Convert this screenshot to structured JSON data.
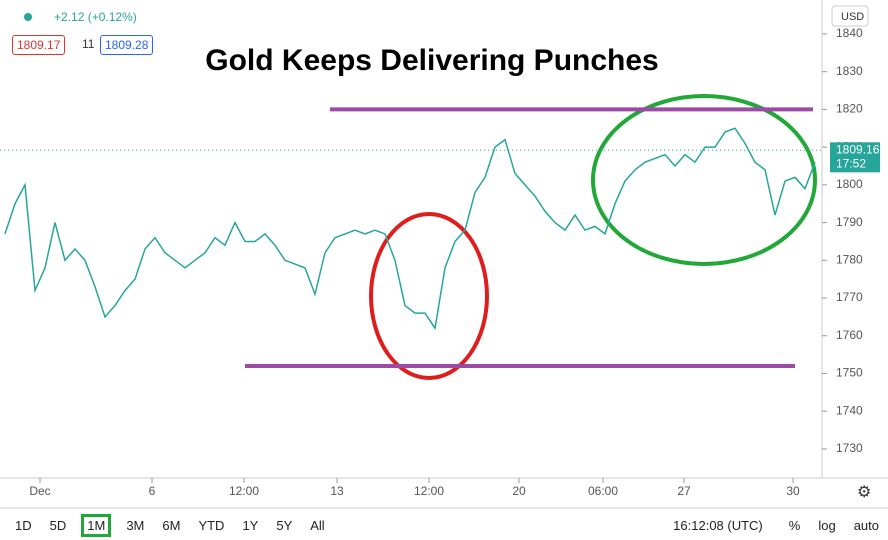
{
  "chart_data": {
    "type": "line",
    "title": "Gold Keeps Delivering Punches",
    "change": "+2.12 (+0.12%)",
    "bid": "1809.17",
    "spread": "11",
    "ask": "1809.28",
    "currency": "USD",
    "color": "#26a69a",
    "values": [
      1787,
      1795,
      1800,
      1772,
      1778,
      1790,
      1780,
      1783,
      1780,
      1773,
      1765,
      1768,
      1772,
      1775,
      1783,
      1786,
      1782,
      1780,
      1778,
      1780,
      1782,
      1786,
      1784,
      1790,
      1785,
      1785,
      1787,
      1784,
      1780,
      1779,
      1778,
      1771,
      1782,
      1786,
      1787,
      1788,
      1787,
      1788,
      1787,
      1780,
      1768,
      1766,
      1766,
      1762,
      1778,
      1785,
      1788,
      1798,
      1802,
      1810,
      1812,
      1803,
      1800,
      1797,
      1793,
      1790,
      1788,
      1792,
      1788,
      1789,
      1787,
      1795,
      1801,
      1804,
      1806,
      1807,
      1808,
      1805,
      1808,
      1806,
      1810,
      1810,
      1814,
      1815,
      1811,
      1806,
      1804,
      1792,
      1801,
      1802,
      1799,
      1806
    ],
    "xlim": [
      -0.5,
      81.7
    ],
    "xticks": [
      {
        "value": 3.5,
        "label": "Dec"
      },
      {
        "value": 14.7,
        "label": "6"
      },
      {
        "value": 23.9,
        "label": "12:00"
      },
      {
        "value": 33.2,
        "label": "13"
      },
      {
        "value": 42.4,
        "label": "12:00"
      },
      {
        "value": 51.4,
        "label": "20"
      },
      {
        "value": 59.8,
        "label": "06:00"
      },
      {
        "value": 67.9,
        "label": "27"
      },
      {
        "value": 78.8,
        "label": "30"
      }
    ],
    "ylim": [
      1722.3,
      1849
    ],
    "yticks": [
      1730,
      1740,
      1750,
      1760,
      1770,
      1780,
      1790,
      1800,
      1810,
      1820,
      1830,
      1840
    ],
    "levels": [
      {
        "value": 1820,
        "x_range": [
          32.5,
          80.8
        ],
        "color": "#9c4aa6"
      },
      {
        "value": 1752,
        "x_range": [
          24,
          79
        ],
        "color": "#9c4aa6"
      }
    ],
    "last_price": 1809.16,
    "countdown": "17:52"
  },
  "toolbar": {
    "ranges": [
      "1D",
      "5D",
      "1M",
      "3M",
      "6M",
      "YTD",
      "1Y",
      "5Y",
      "All"
    ],
    "active": 2,
    "clock": "16:12:08 (UTC)",
    "percent": "%",
    "log": "log",
    "auto": "auto"
  }
}
